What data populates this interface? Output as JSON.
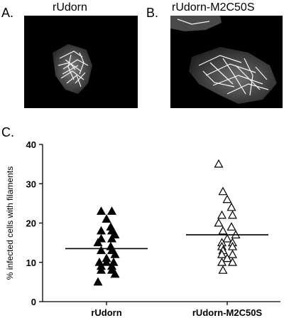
{
  "panels": {
    "a": {
      "letter": "A.",
      "title": "rUdorn"
    },
    "b": {
      "letter": "B.",
      "title": "rUdorn-M2C50S"
    },
    "c": {
      "letter": "C."
    }
  },
  "colors": {
    "background": "#ffffff",
    "micrograph_bg": "#000000",
    "filament": "#ffffff"
  },
  "chart_data": {
    "type": "scatter",
    "title": "",
    "xlabel": "",
    "ylabel": "% infected cells with filaments",
    "ylim": [
      0,
      40
    ],
    "yticks": [
      0,
      10,
      20,
      30,
      40
    ],
    "grid": false,
    "categories": [
      "rUdorn",
      "rUdorn-M2C50S"
    ],
    "series": [
      {
        "category": "rUdorn",
        "marker": "filled-triangle",
        "values": [
          23,
          23,
          21,
          19,
          18,
          18,
          17,
          16,
          16,
          15,
          14,
          13,
          13,
          12,
          11,
          10,
          10,
          10,
          9,
          9,
          8,
          8,
          7,
          5
        ],
        "mean": 13.5
      },
      {
        "category": "rUdorn-M2C50S",
        "marker": "open-triangle",
        "values": [
          35,
          28,
          26,
          24,
          22,
          22,
          20,
          19,
          18,
          17,
          16,
          15,
          15,
          14,
          14,
          13,
          12,
          12,
          11,
          10,
          10,
          8
        ],
        "mean": 17
      }
    ]
  }
}
